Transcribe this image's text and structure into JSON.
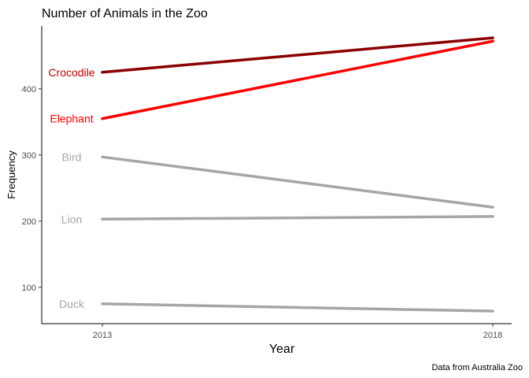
{
  "chart_data": {
    "type": "line",
    "title": "Number of Animals in the Zoo",
    "xlabel": "Year",
    "ylabel": "Frequency",
    "caption": "Data from Australia Zoo",
    "x": [
      2013,
      2018
    ],
    "x_tick_labels": [
      "2013",
      "2018"
    ],
    "y_ticks": [
      100,
      200,
      300,
      400
    ],
    "y_tick_labels": [
      "100",
      "200",
      "300",
      "400"
    ],
    "ylim": [
      45,
      495
    ],
    "grid": false,
    "legend": "none (direct labels at left of lines)",
    "series": [
      {
        "name": "Crocodile",
        "values": [
          425,
          477
        ],
        "color": "#8b0000",
        "label_color": "#c00000"
      },
      {
        "name": "Elephant",
        "values": [
          355,
          472
        ],
        "color": "#ff0000",
        "label_color": "#ff0000"
      },
      {
        "name": "Bird",
        "values": [
          297,
          221
        ],
        "color": "#a6a6a6",
        "label_color": "#a6a6a6"
      },
      {
        "name": "Lion",
        "values": [
          203,
          207
        ],
        "color": "#a6a6a6",
        "label_color": "#a6a6a6"
      },
      {
        "name": "Duck",
        "values": [
          75,
          64
        ],
        "color": "#a6a6a6",
        "label_color": "#a6a6a6"
      }
    ]
  }
}
